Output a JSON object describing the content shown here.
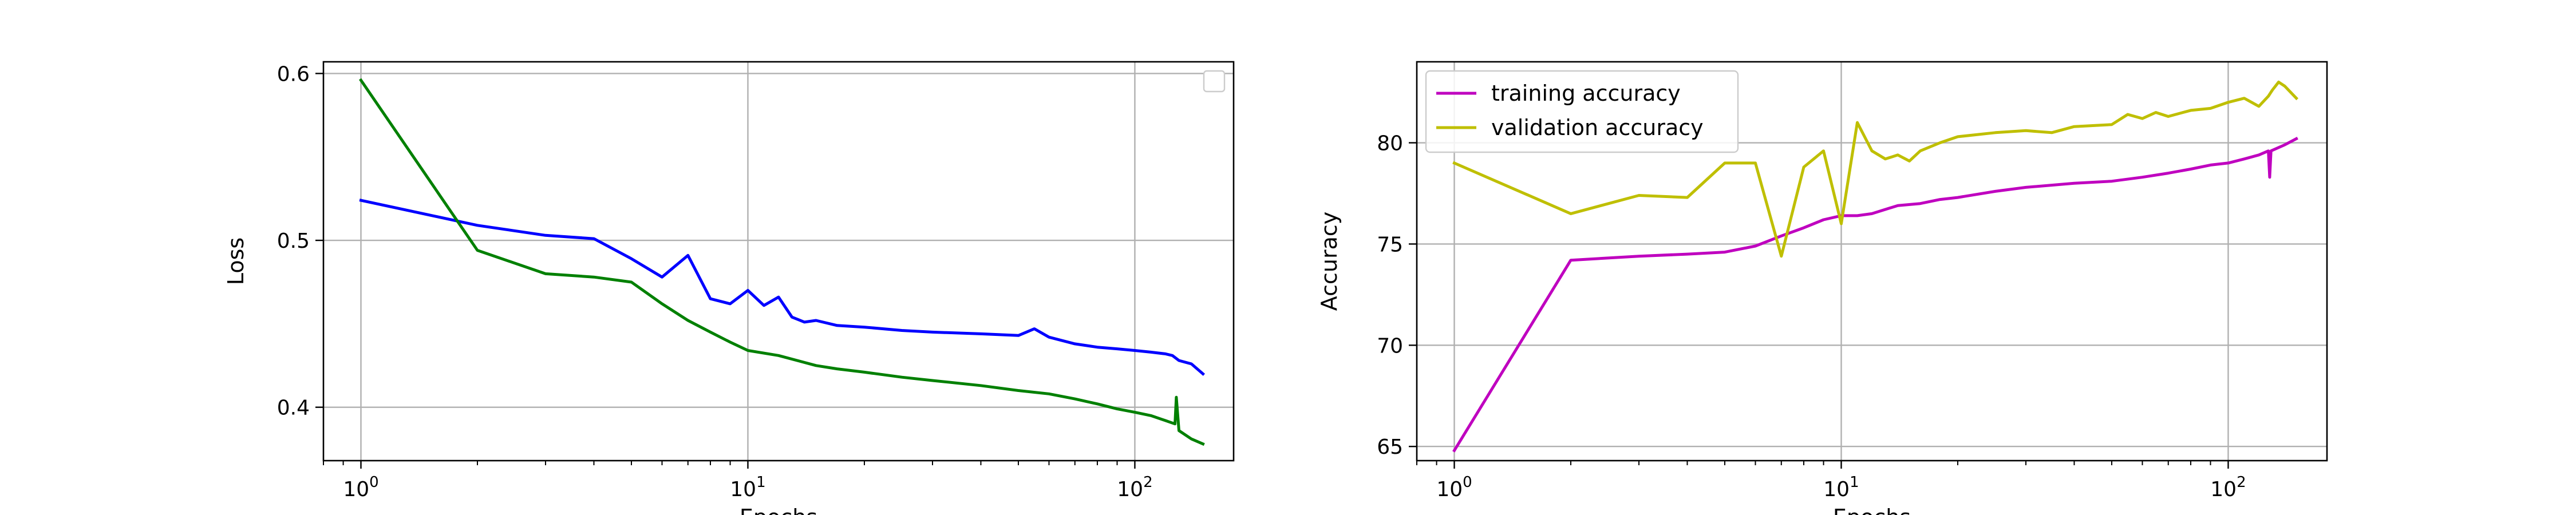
{
  "chart_data": [
    {
      "type": "line",
      "xlabel": "Epochs",
      "ylabel": "Loss",
      "x_scale": "log",
      "xlim": [
        0.8,
        180
      ],
      "ylim": [
        0.368,
        0.607
      ],
      "grid": true,
      "legend": {
        "placement": "top-right",
        "entries": []
      },
      "x_ticks": [
        {
          "value": 1,
          "base": "10",
          "exp": "0"
        },
        {
          "value": 10,
          "base": "10",
          "exp": "1"
        },
        {
          "value": 100,
          "base": "10",
          "exp": "2"
        }
      ],
      "y_ticks": [
        {
          "value": 0.4,
          "label": "0.4"
        },
        {
          "value": 0.5,
          "label": "0.5"
        },
        {
          "value": 0.6,
          "label": "0.6"
        }
      ],
      "series": [
        {
          "color": "#0000ff",
          "x": [
            1,
            2,
            3,
            4,
            5,
            6,
            7,
            8,
            9,
            10,
            11,
            12,
            13,
            14,
            15,
            17,
            20,
            25,
            30,
            40,
            50,
            55,
            60,
            70,
            80,
            90,
            100,
            110,
            120,
            125,
            130,
            140,
            150
          ],
          "y": [
            0.524,
            0.509,
            0.503,
            0.501,
            0.489,
            0.478,
            0.491,
            0.465,
            0.462,
            0.47,
            0.461,
            0.466,
            0.454,
            0.451,
            0.452,
            0.449,
            0.448,
            0.446,
            0.445,
            0.444,
            0.443,
            0.447,
            0.442,
            0.438,
            0.436,
            0.435,
            0.434,
            0.433,
            0.432,
            0.431,
            0.428,
            0.426,
            0.42
          ]
        },
        {
          "color": "#008000",
          "x": [
            1,
            2,
            3,
            4,
            5,
            6,
            7,
            8,
            9,
            10,
            12,
            15,
            17,
            20,
            25,
            30,
            40,
            50,
            60,
            70,
            80,
            90,
            100,
            110,
            120,
            127,
            128,
            130,
            140,
            150
          ],
          "y": [
            0.596,
            0.494,
            0.48,
            0.478,
            0.475,
            0.462,
            0.452,
            0.445,
            0.439,
            0.434,
            0.431,
            0.425,
            0.423,
            0.421,
            0.418,
            0.416,
            0.413,
            0.41,
            0.408,
            0.405,
            0.402,
            0.399,
            0.397,
            0.395,
            0.392,
            0.39,
            0.406,
            0.386,
            0.381,
            0.378
          ]
        }
      ]
    },
    {
      "type": "line",
      "xlabel": "Epochs",
      "ylabel": "Accuracy",
      "x_scale": "log",
      "xlim": [
        0.8,
        180
      ],
      "ylim": [
        64.3,
        84
      ],
      "grid": true,
      "legend": {
        "placement": "top-left"
      },
      "x_ticks": [
        {
          "value": 1,
          "base": "10",
          "exp": "0"
        },
        {
          "value": 10,
          "base": "10",
          "exp": "1"
        },
        {
          "value": 100,
          "base": "10",
          "exp": "2"
        }
      ],
      "y_ticks": [
        {
          "value": 65,
          "label": "65"
        },
        {
          "value": 70,
          "label": "70"
        },
        {
          "value": 75,
          "label": "75"
        },
        {
          "value": 80,
          "label": "80"
        }
      ],
      "series": [
        {
          "name": "training accuracy",
          "color": "#bf00bf",
          "x": [
            1,
            2,
            3,
            4,
            5,
            6,
            7,
            8,
            9,
            10,
            11,
            12,
            14,
            16,
            18,
            20,
            25,
            30,
            40,
            50,
            60,
            70,
            80,
            90,
            100,
            110,
            120,
            127,
            128,
            129,
            140,
            150
          ],
          "y": [
            64.8,
            74.2,
            74.4,
            74.5,
            74.6,
            74.9,
            75.4,
            75.8,
            76.2,
            76.4,
            76.4,
            76.5,
            76.9,
            77.0,
            77.2,
            77.3,
            77.6,
            77.8,
            78.0,
            78.1,
            78.3,
            78.5,
            78.7,
            78.9,
            79.0,
            79.2,
            79.4,
            79.6,
            78.3,
            79.6,
            79.9,
            80.2
          ]
        },
        {
          "name": "validation accuracy",
          "color": "#bfbf00",
          "x": [
            1,
            2,
            3,
            4,
            5,
            6,
            7,
            8,
            9,
            10,
            11,
            12,
            13,
            14,
            15,
            16,
            18,
            20,
            25,
            30,
            35,
            40,
            50,
            55,
            60,
            65,
            70,
            80,
            90,
            100,
            110,
            120,
            127,
            130,
            135,
            140,
            150
          ],
          "y": [
            79.0,
            76.5,
            77.4,
            77.3,
            79.0,
            79.0,
            74.4,
            78.8,
            79.6,
            76.0,
            81.0,
            79.6,
            79.2,
            79.4,
            79.1,
            79.6,
            80.0,
            80.3,
            80.5,
            80.6,
            80.5,
            80.8,
            80.9,
            81.4,
            81.2,
            81.5,
            81.3,
            81.6,
            81.7,
            82.0,
            82.2,
            81.8,
            82.3,
            82.6,
            83.0,
            82.8,
            82.2
          ]
        }
      ]
    }
  ]
}
